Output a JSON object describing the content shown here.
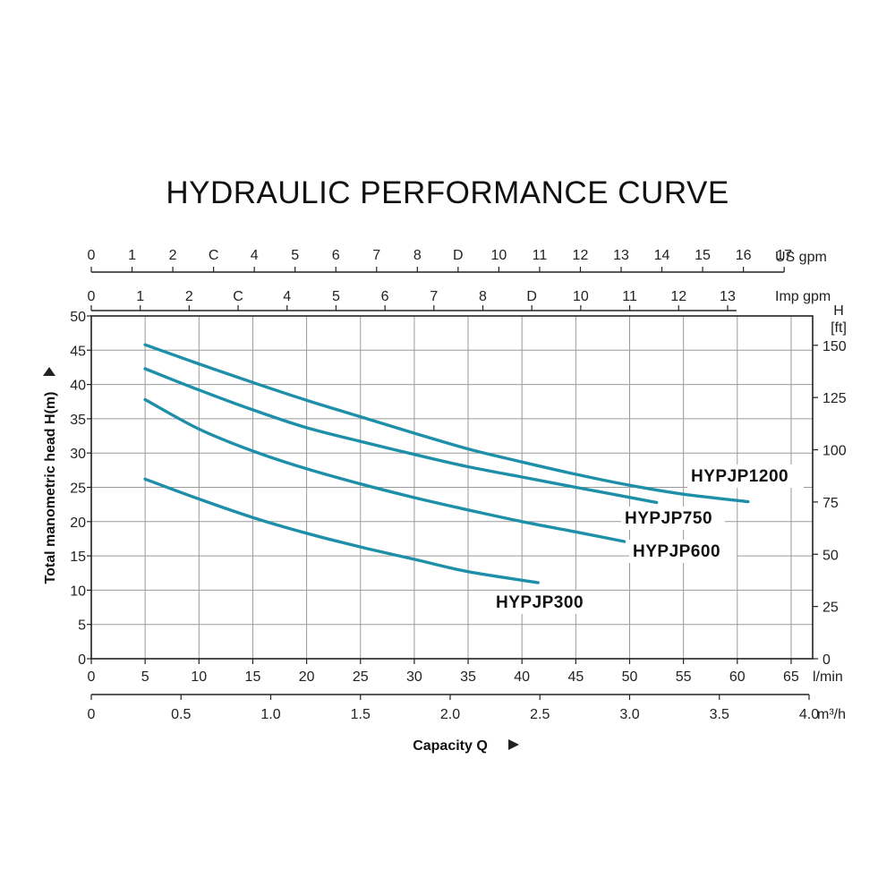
{
  "chart_data": {
    "type": "line",
    "title": "HYDRAULIC PERFORMANCE CURVE",
    "xlabel": "Capacity Q",
    "ylabel": "Total manometric head H(m)",
    "y2label_top": "H",
    "y2label_unit": "[ft]",
    "x_unit": "l/min",
    "x_m3h_unit": "m³/h",
    "x_usgpm_unit": "US gpm",
    "x_impgpm_unit": "Imp gpm",
    "xlim": [
      0,
      67
    ],
    "ylim": [
      0,
      50
    ],
    "grid": true,
    "x_ticks": [
      "0",
      "5",
      "10",
      "15",
      "20",
      "25",
      "30",
      "35",
      "40",
      "45",
      "50",
      "55",
      "60",
      "65"
    ],
    "y_ticks": [
      "0",
      "5",
      "10",
      "15",
      "20",
      "25",
      "30",
      "35",
      "40",
      "45",
      "50"
    ],
    "y_ft_ticks": [
      "0",
      "25",
      "50",
      "75",
      "100",
      "125",
      "150"
    ],
    "m3h_ticks": [
      "0",
      "0.5",
      "1.0",
      "1.5",
      "2.0",
      "2.5",
      "3.0",
      "3.5",
      "4.0"
    ],
    "usgpm_ticks": [
      "0",
      "1",
      "2",
      "C",
      "4",
      "5",
      "6",
      "7",
      "8",
      "D",
      "10",
      "11",
      "12",
      "13",
      "14",
      "15",
      "16",
      "17"
    ],
    "impgpm_ticks": [
      "0",
      "1",
      "2",
      "C",
      "4",
      "5",
      "6",
      "7",
      "8",
      "D",
      "10",
      "11",
      "12",
      "13"
    ],
    "series": [
      {
        "name": "HYPJP1200",
        "x": [
          5,
          10,
          15,
          20,
          25,
          30,
          35,
          40,
          45,
          50,
          55,
          61
        ],
        "y": [
          45.8,
          43.0,
          40.3,
          37.7,
          35.3,
          32.9,
          30.6,
          28.7,
          26.9,
          25.3,
          24.0,
          22.9
        ]
      },
      {
        "name": "HYPJP750",
        "x": [
          5,
          10,
          15,
          20,
          25,
          30,
          35,
          40,
          45,
          52.5
        ],
        "y": [
          42.3,
          39.2,
          36.3,
          33.7,
          31.7,
          29.8,
          28.0,
          26.5,
          25.0,
          22.8
        ]
      },
      {
        "name": "HYPJP600",
        "x": [
          5,
          10,
          15,
          20,
          25,
          30,
          35,
          40,
          45,
          49.5
        ],
        "y": [
          37.8,
          33.5,
          30.3,
          27.7,
          25.5,
          23.5,
          21.7,
          20.0,
          18.5,
          17.1
        ]
      },
      {
        "name": "HYPJP300",
        "x": [
          5,
          10,
          15,
          20,
          25,
          30,
          35,
          41.5
        ],
        "y": [
          26.2,
          23.3,
          20.6,
          18.3,
          16.3,
          14.5,
          12.7,
          11.1
        ]
      }
    ],
    "colors": {
      "curve": "#1e8fa8",
      "grid": "#9a9a9a",
      "axis": "#222222"
    }
  }
}
